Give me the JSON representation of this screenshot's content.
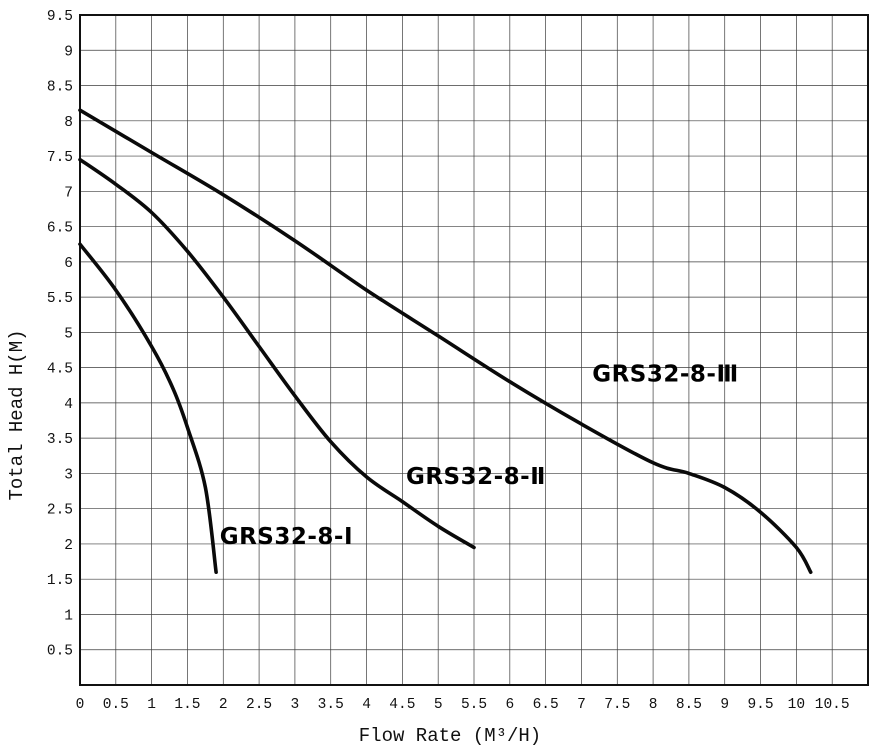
{
  "chart_data": {
    "type": "line",
    "title": "",
    "xlabel": "Flow Rate (M³/H)",
    "ylabel": "Total Head H(M)",
    "xlim": [
      0,
      11
    ],
    "ylim": [
      0,
      9.5
    ],
    "grid": true,
    "xtick_step": 0.5,
    "ytick_step": 0.5,
    "xtick_labels": [
      0,
      0.5,
      1,
      1.5,
      2,
      2.5,
      3,
      3.5,
      4,
      4.5,
      5,
      5.5,
      6,
      6.5,
      7,
      7.5,
      8,
      8.5,
      9,
      9.5,
      10,
      10.5
    ],
    "ytick_labels": [
      0.5,
      1,
      1.5,
      2,
      2.5,
      3,
      3.5,
      4,
      4.5,
      5,
      5.5,
      6,
      6.5,
      7,
      7.5,
      8,
      8.5,
      9,
      9.5
    ],
    "line_color": "#0a0a0a",
    "legend_position": "inline-labels",
    "series": [
      {
        "name": "GRS32-8-Ⅰ",
        "label_pos": [
          1.95,
          2.0
        ],
        "points": [
          [
            0,
            6.25
          ],
          [
            0.5,
            5.6
          ],
          [
            1,
            4.8
          ],
          [
            1.3,
            4.2
          ],
          [
            1.5,
            3.65
          ],
          [
            1.75,
            2.8
          ],
          [
            1.9,
            1.6
          ]
        ]
      },
      {
        "name": "GRS32-8-Ⅱ",
        "label_pos": [
          4.55,
          2.85
        ],
        "points": [
          [
            0,
            7.45
          ],
          [
            0.5,
            7.1
          ],
          [
            1,
            6.7
          ],
          [
            1.5,
            6.15
          ],
          [
            2,
            5.5
          ],
          [
            2.5,
            4.8
          ],
          [
            3,
            4.1
          ],
          [
            3.5,
            3.45
          ],
          [
            4,
            2.95
          ],
          [
            4.5,
            2.6
          ],
          [
            5,
            2.25
          ],
          [
            5.5,
            1.95
          ]
        ]
      },
      {
        "name": "GRS32-8-Ⅲ",
        "label_pos": [
          7.15,
          4.3
        ],
        "points": [
          [
            0,
            8.15
          ],
          [
            1,
            7.55
          ],
          [
            2,
            6.95
          ],
          [
            3,
            6.3
          ],
          [
            4,
            5.6
          ],
          [
            5,
            4.95
          ],
          [
            6,
            4.3
          ],
          [
            7,
            3.7
          ],
          [
            8,
            3.15
          ],
          [
            8.5,
            3.0
          ],
          [
            9,
            2.8
          ],
          [
            9.5,
            2.45
          ],
          [
            10,
            1.95
          ],
          [
            10.2,
            1.6
          ]
        ]
      }
    ]
  }
}
